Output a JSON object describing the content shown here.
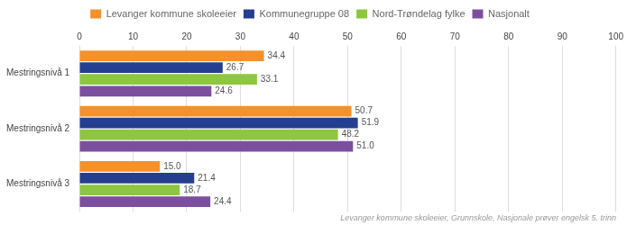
{
  "chart_data": {
    "type": "bar",
    "orientation": "horizontal",
    "categories": [
      "Mestringsnivå 1",
      "Mestringsnivå 2",
      "Mestringsnivå 3"
    ],
    "series": [
      {
        "name": "Levanger kommune skoleeier",
        "color": "#F4912B",
        "values": [
          34.4,
          50.7,
          15.0
        ],
        "value_labels": [
          "34.4",
          "50.7",
          "15.0"
        ]
      },
      {
        "name": "Kommunegruppe 08",
        "color": "#243F8F",
        "values": [
          26.7,
          51.9,
          21.4
        ],
        "value_labels": [
          "26.7",
          "51.9",
          "21.4"
        ]
      },
      {
        "name": "Nord-Trøndelag fylke",
        "color": "#8DC63F",
        "values": [
          33.1,
          48.2,
          18.7
        ],
        "value_labels": [
          "33.1",
          "48.2",
          "18.7"
        ]
      },
      {
        "name": "Nasjonalt",
        "color": "#7B4F9E",
        "values": [
          24.6,
          51.0,
          24.4
        ],
        "value_labels": [
          "24.6",
          "51.0",
          "24.4"
        ]
      }
    ],
    "xlim": [
      0,
      100
    ],
    "xticks": [
      0,
      10,
      20,
      30,
      40,
      50,
      60,
      70,
      80,
      90,
      100
    ],
    "grid": true,
    "legend": "top",
    "data_labels": true,
    "footnote": "Levanger kommune skoleeier, Grunnskole, Nasjonale prøver engelsk 5. trinn"
  }
}
